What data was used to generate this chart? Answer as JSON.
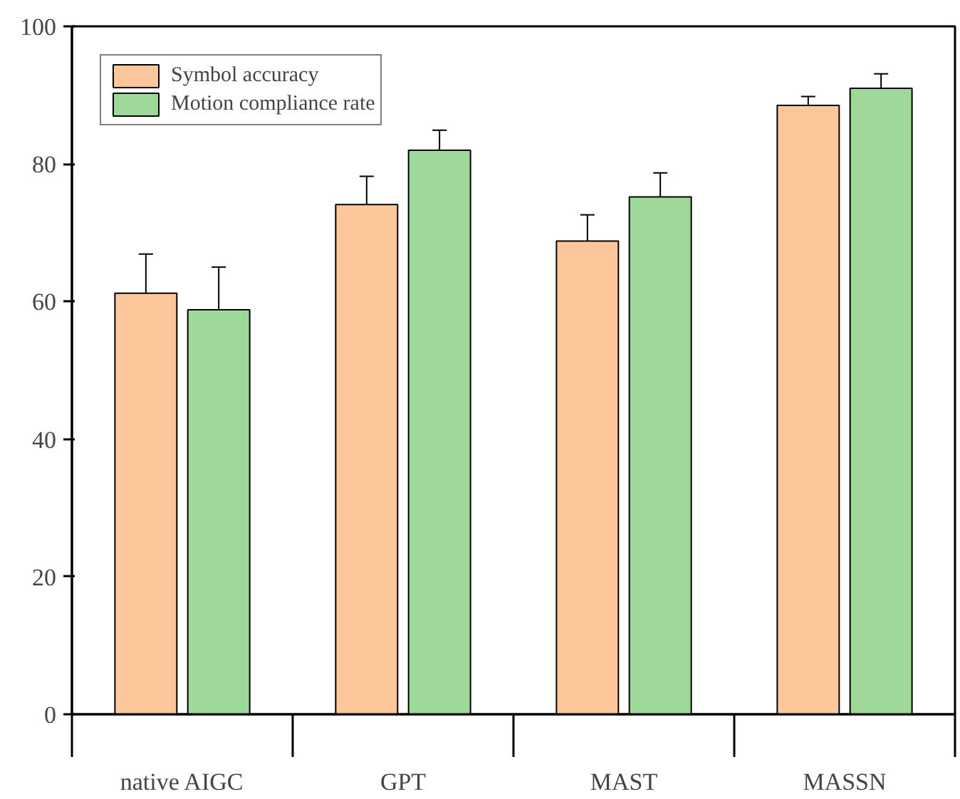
{
  "chart_data": {
    "type": "bar",
    "categories": [
      "native AIGC",
      "GPT",
      "MAST",
      "MASSN"
    ],
    "series": [
      {
        "name": "Symbol accuracy",
        "color": "#fcc89b",
        "values": [
          61.2,
          74.1,
          68.8,
          88.5
        ],
        "errors": [
          5.7,
          4.1,
          3.8,
          1.3
        ]
      },
      {
        "name": "Motion compliance rate",
        "color": "#9fd99a",
        "values": [
          58.8,
          82.0,
          75.2,
          91.0
        ],
        "errors": [
          6.2,
          2.9,
          3.5,
          2.1
        ]
      }
    ],
    "ylim": [
      0,
      100
    ],
    "yticks": [
      0,
      20,
      40,
      60,
      80,
      100
    ],
    "grid": false,
    "legend": "top left"
  }
}
